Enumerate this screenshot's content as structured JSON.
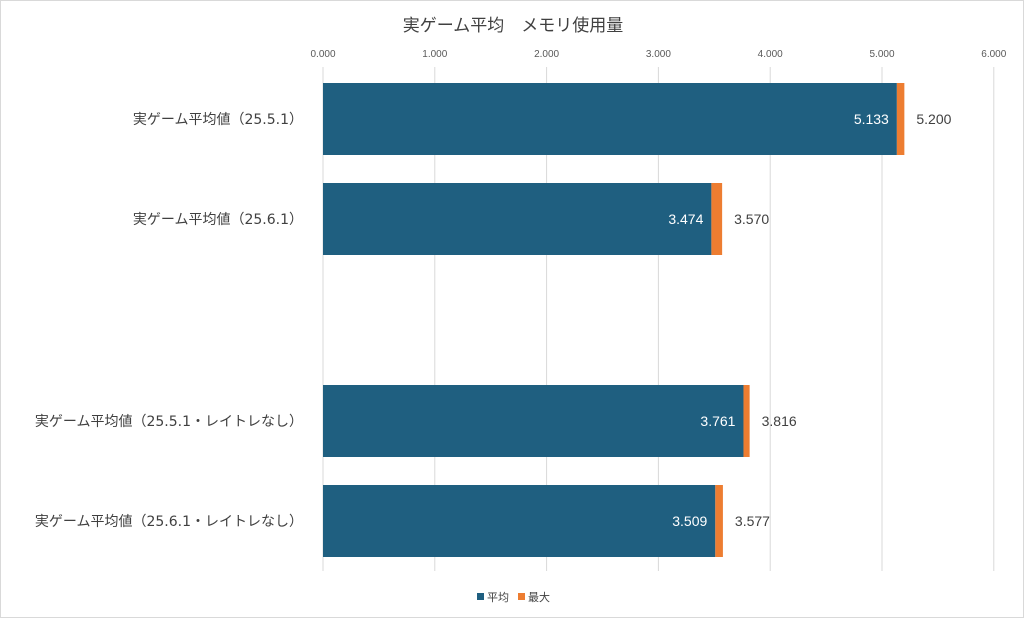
{
  "chart_data": {
    "type": "bar",
    "orientation": "horizontal",
    "title": "実ゲーム平均　メモリ使用量",
    "xlim": [
      0,
      6
    ],
    "x_ticks": [
      "0.000",
      "1.000",
      "2.000",
      "3.000",
      "4.000",
      "5.000",
      "6.000"
    ],
    "grid": true,
    "legend_position": "bottom",
    "categories": [
      "実ゲーム平均値（25.5.1）",
      "実ゲーム平均値（25.6.1）",
      "",
      "実ゲーム平均値（25.5.1・レイトレなし）",
      "実ゲーム平均値（25.6.1・レイトレなし）"
    ],
    "series": [
      {
        "name": "平均",
        "color": "#1f5f80",
        "values": [
          5.133,
          3.474,
          null,
          3.761,
          3.509
        ],
        "labels": [
          "5.133",
          "3.474",
          "",
          "3.761",
          "3.509"
        ]
      },
      {
        "name": "最大",
        "color": "#ed7d31",
        "values": [
          5.2,
          3.57,
          null,
          3.816,
          3.577
        ],
        "labels": [
          "5.200",
          "3.570",
          "",
          "3.816",
          "3.577"
        ]
      }
    ]
  }
}
